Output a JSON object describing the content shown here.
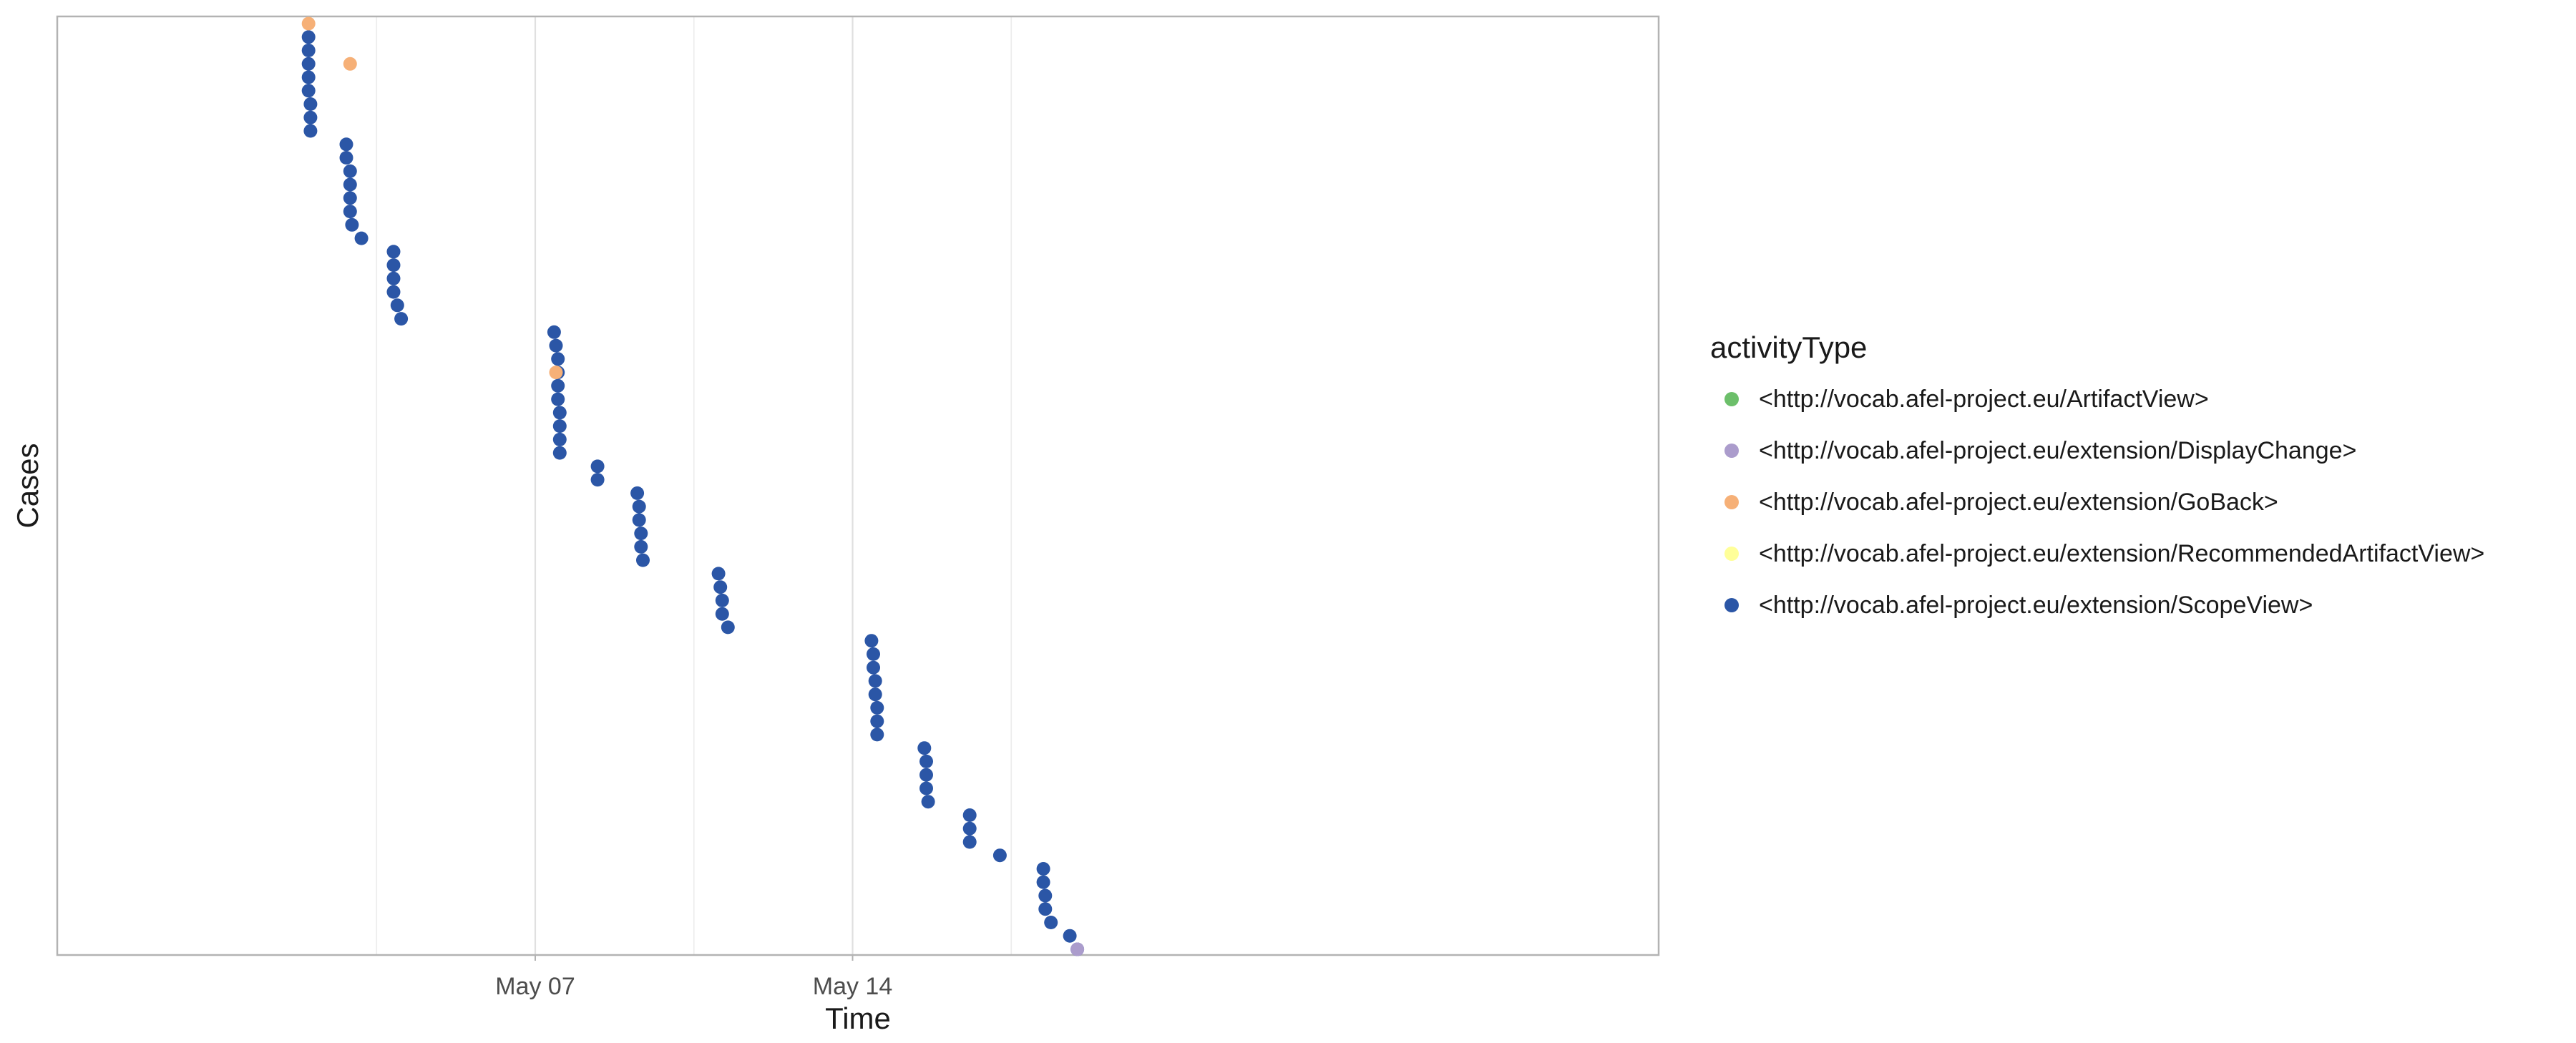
{
  "chart_data": {
    "type": "scatter",
    "xlabel": "Time",
    "ylabel": "Cases",
    "x_ticks": [
      "May 07",
      "May 14"
    ],
    "legend_title": "activityType",
    "legend_placement": "right",
    "grid": "vertical",
    "series": [
      {
        "name": "<http://vocab.afel-project.eu/ArtifactView>",
        "color": "#6cbf6a",
        "points": []
      },
      {
        "name": "<http://vocab.afel-project.eu/extension/DisplayChange>",
        "color": "#ab9ccc",
        "points": [
          {
            "x": "May 18 23:00",
            "y": 0
          }
        ]
      },
      {
        "name": "<http://vocab.afel-project.eu/extension/GoBack>",
        "color": "#f6b077",
        "points": [
          {
            "x": "May 02 00:00",
            "y": 69
          },
          {
            "x": "May 02 22:00",
            "y": 66
          },
          {
            "x": "May 07 11:00",
            "y": 43
          }
        ]
      },
      {
        "name": "<http://vocab.afel-project.eu/extension/RecommendedArtifactView>",
        "color": "#ffff99",
        "points": []
      },
      {
        "name": "<http://vocab.afel-project.eu/extension/ScopeView>",
        "color": "#2b56a6",
        "points": [
          {
            "x": "May 02 00:00",
            "y": 68
          },
          {
            "x": "May 02 00:00",
            "y": 67
          },
          {
            "x": "May 02 00:00",
            "y": 66
          },
          {
            "x": "May 02 00:00",
            "y": 65
          },
          {
            "x": "May 02 00:00",
            "y": 64
          },
          {
            "x": "May 02 01:00",
            "y": 63
          },
          {
            "x": "May 02 01:00",
            "y": 62
          },
          {
            "x": "May 02 01:00",
            "y": 61
          },
          {
            "x": "May 02 20:00",
            "y": 60
          },
          {
            "x": "May 02 20:00",
            "y": 59
          },
          {
            "x": "May 02 22:00",
            "y": 58
          },
          {
            "x": "May 02 22:00",
            "y": 57
          },
          {
            "x": "May 02 22:00",
            "y": 56
          },
          {
            "x": "May 02 22:00",
            "y": 55
          },
          {
            "x": "May 02 23:00",
            "y": 54
          },
          {
            "x": "May 03 04:00",
            "y": 53
          },
          {
            "x": "May 03 21:00",
            "y": 52
          },
          {
            "x": "May 03 21:00",
            "y": 51
          },
          {
            "x": "May 03 21:00",
            "y": 50
          },
          {
            "x": "May 03 21:00",
            "y": 49
          },
          {
            "x": "May 03 23:00",
            "y": 48
          },
          {
            "x": "May 04 01:00",
            "y": 47
          },
          {
            "x": "May 07 10:00",
            "y": 46
          },
          {
            "x": "May 07 11:00",
            "y": 45
          },
          {
            "x": "May 07 12:00",
            "y": 44
          },
          {
            "x": "May 07 12:00",
            "y": 43
          },
          {
            "x": "May 07 12:00",
            "y": 42
          },
          {
            "x": "May 07 12:00",
            "y": 41
          },
          {
            "x": "May 07 13:00",
            "y": 40
          },
          {
            "x": "May 07 13:00",
            "y": 39
          },
          {
            "x": "May 07 13:00",
            "y": 38
          },
          {
            "x": "May 07 13:00",
            "y": 37
          },
          {
            "x": "May 08 09:00",
            "y": 36
          },
          {
            "x": "May 08 09:00",
            "y": 35
          },
          {
            "x": "May 09 06:00",
            "y": 34
          },
          {
            "x": "May 09 07:00",
            "y": 33
          },
          {
            "x": "May 09 07:00",
            "y": 32
          },
          {
            "x": "May 09 08:00",
            "y": 31
          },
          {
            "x": "May 09 08:00",
            "y": 30
          },
          {
            "x": "May 09 09:00",
            "y": 29
          },
          {
            "x": "May 11 01:00",
            "y": 28
          },
          {
            "x": "May 11 02:00",
            "y": 27
          },
          {
            "x": "May 11 03:00",
            "y": 26
          },
          {
            "x": "May 11 03:00",
            "y": 25
          },
          {
            "x": "May 11 06:00",
            "y": 24
          },
          {
            "x": "May 14 10:00",
            "y": 23
          },
          {
            "x": "May 14 11:00",
            "y": 22
          },
          {
            "x": "May 14 11:00",
            "y": 21
          },
          {
            "x": "May 14 12:00",
            "y": 20
          },
          {
            "x": "May 14 12:00",
            "y": 19
          },
          {
            "x": "May 14 13:00",
            "y": 18
          },
          {
            "x": "May 14 13:00",
            "y": 17
          },
          {
            "x": "May 14 13:00",
            "y": 16
          },
          {
            "x": "May 15 14:00",
            "y": 15
          },
          {
            "x": "May 15 15:00",
            "y": 14
          },
          {
            "x": "May 15 15:00",
            "y": 13
          },
          {
            "x": "May 15 15:00",
            "y": 12
          },
          {
            "x": "May 15 16:00",
            "y": 11
          },
          {
            "x": "May 16 14:00",
            "y": 10
          },
          {
            "x": "May 16 14:00",
            "y": 9
          },
          {
            "x": "May 16 14:00",
            "y": 8
          },
          {
            "x": "May 17 06:00",
            "y": 7
          },
          {
            "x": "May 18 05:00",
            "y": 6
          },
          {
            "x": "May 18 05:00",
            "y": 5
          },
          {
            "x": "May 18 06:00",
            "y": 4
          },
          {
            "x": "May 18 06:00",
            "y": 3
          },
          {
            "x": "May 18 09:00",
            "y": 2
          },
          {
            "x": "May 18 19:00",
            "y": 1
          },
          {
            "x": "May 18 23:00",
            "y": 0
          }
        ]
      }
    ]
  }
}
